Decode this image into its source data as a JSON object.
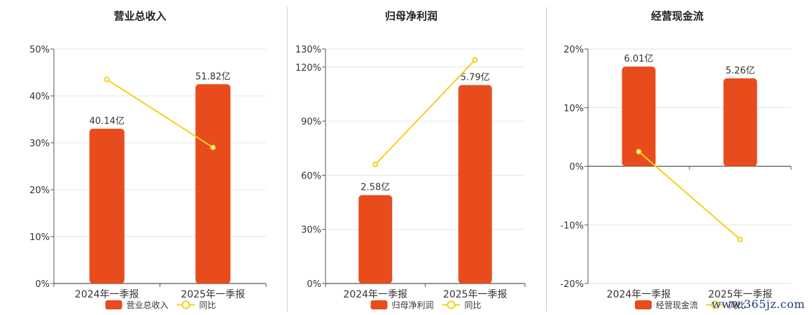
{
  "chart_data": [
    {
      "type": "bar",
      "title": "营业总收入",
      "categories": [
        "2024年一季报",
        "2025年一季报"
      ],
      "bar_labels": [
        "40.14亿",
        "51.82亿"
      ],
      "bar_values_pct": [
        33,
        42.5
      ],
      "line_values_pct": [
        43.5,
        29
      ],
      "ylim": [
        0,
        50
      ],
      "yticks": [
        0,
        10,
        20,
        30,
        40,
        50
      ],
      "ytick_labels": [
        "0%",
        "10%",
        "20%",
        "30%",
        "40%",
        "50%"
      ],
      "legend": [
        "营业总收入",
        "同比"
      ],
      "series": [
        {
          "name": "营业总收入",
          "values": [
            40.14,
            51.82
          ]
        },
        {
          "name": "同比",
          "values": [
            43.5,
            29
          ]
        }
      ]
    },
    {
      "type": "bar",
      "title": "归母净利润",
      "categories": [
        "2024年一季报",
        "2025年一季报"
      ],
      "bar_labels": [
        "2.58亿",
        "5.79亿"
      ],
      "bar_values_pct": [
        49,
        110
      ],
      "line_values_pct": [
        66,
        124
      ],
      "ylim": [
        0,
        130
      ],
      "yticks": [
        0,
        30,
        60,
        90,
        120,
        130
      ],
      "ytick_labels": [
        "0%",
        "30%",
        "60%",
        "90%",
        "120%",
        "130%"
      ],
      "legend": [
        "归母净利润",
        "同比"
      ],
      "series": [
        {
          "name": "归母净利润",
          "values": [
            2.58,
            5.79
          ]
        },
        {
          "name": "同比",
          "values": [
            66,
            124
          ]
        }
      ]
    },
    {
      "type": "bar",
      "title": "经营现金流",
      "categories": [
        "2024年一季报",
        "2025年一季报"
      ],
      "bar_labels": [
        "6.01亿",
        "5.26亿"
      ],
      "bar_values_pct": [
        17,
        15
      ],
      "line_values_pct": [
        2.5,
        -12.5
      ],
      "ylim": [
        -20,
        20
      ],
      "yticks": [
        -20,
        -10,
        0,
        10,
        20
      ],
      "ytick_labels": [
        "-20%",
        "-10%",
        "0%",
        "10%",
        "20%"
      ],
      "legend": [
        "经营现金流",
        "同比"
      ],
      "series": [
        {
          "name": "经营现金流",
          "values": [
            6.01,
            5.26
          ]
        },
        {
          "name": "同比",
          "values": [
            2.5,
            -12.5
          ]
        }
      ]
    }
  ],
  "colors": {
    "bar": "#e84c1c",
    "line": "#f2d21b",
    "grid": "#e6e6e6",
    "axis": "#555555",
    "text": "#333333"
  },
  "watermark": "www.365jz.com"
}
